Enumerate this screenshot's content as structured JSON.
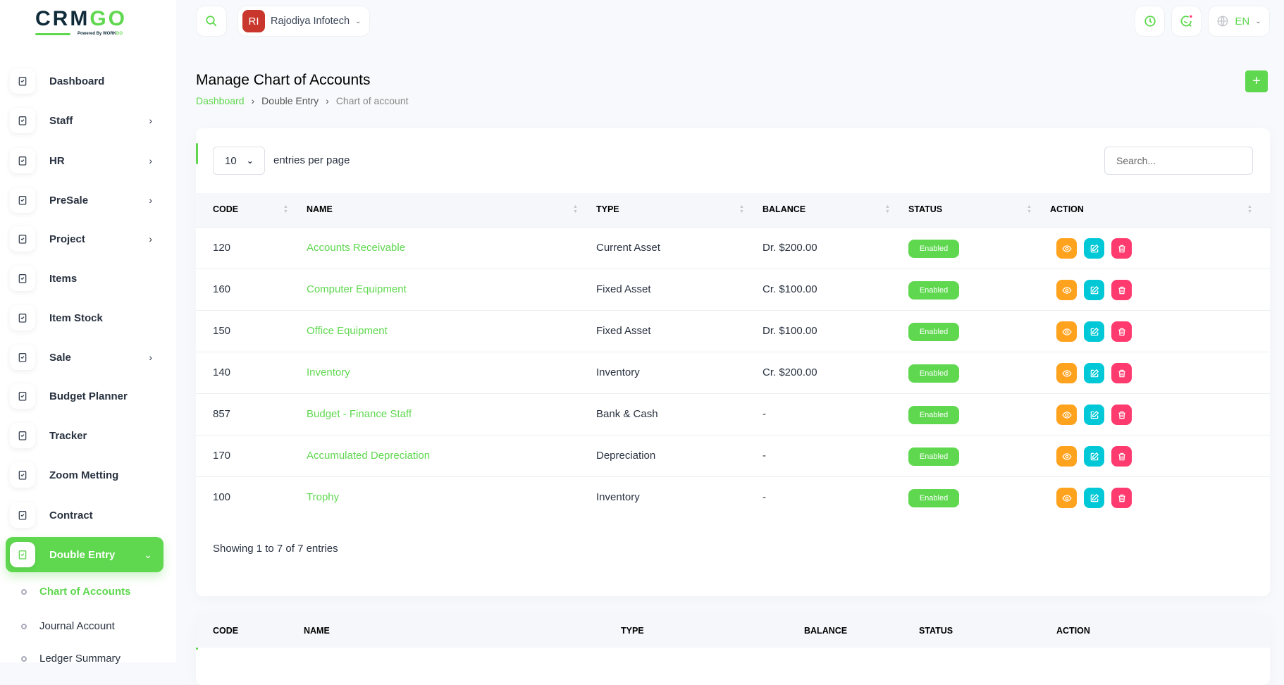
{
  "brand": {
    "logo_text": "CRMGO",
    "powered_by": "Powered By WORKDO"
  },
  "sidebar": {
    "items": [
      {
        "label": "Dashboard",
        "icon": "home-icon",
        "chevron": false
      },
      {
        "label": "Staff",
        "icon": "users-icon",
        "chevron": true
      },
      {
        "label": "HR",
        "icon": "plug-icon",
        "chevron": true
      },
      {
        "label": "PreSale",
        "icon": "grid-icon",
        "chevron": true
      },
      {
        "label": "Project",
        "icon": "grid-icon",
        "chevron": true
      },
      {
        "label": "Items",
        "icon": "clipboard-icon",
        "chevron": false
      },
      {
        "label": "Item Stock",
        "icon": "clipboard-icon",
        "chevron": false
      },
      {
        "label": "Sale",
        "icon": "sale-icon",
        "chevron": true
      },
      {
        "label": "Budget Planner",
        "icon": "clipboard-icon",
        "chevron": false
      },
      {
        "label": "Tracker",
        "icon": "alarm-icon",
        "chevron": false
      },
      {
        "label": "Zoom Metting",
        "icon": "video-icon",
        "chevron": false
      },
      {
        "label": "Contract",
        "icon": "contract-icon",
        "chevron": false
      },
      {
        "label": "Double Entry",
        "icon": "ledger-icon",
        "chevron": true,
        "active": true
      }
    ],
    "subitems": [
      {
        "label": "Chart of Accounts",
        "active": true
      },
      {
        "label": "Journal Account"
      },
      {
        "label": "Ledger Summary"
      }
    ]
  },
  "topbar": {
    "company_initials": "RI",
    "company_name": "Rajodiya Infotech",
    "language": "EN",
    "company_color": "#c9372c"
  },
  "page": {
    "title": "Manage Chart of Accounts",
    "breadcrumb": [
      "Dashboard",
      "Double Entry",
      "Chart of account"
    ],
    "add_label": "+"
  },
  "table": {
    "per_page": "10",
    "per_page_label": "entries per page",
    "search_placeholder": "Search...",
    "columns": [
      "CODE",
      "NAME",
      "TYPE",
      "BALANCE",
      "STATUS",
      "ACTION"
    ],
    "rows": [
      {
        "code": "120",
        "name": "Accounts Receivable",
        "type": "Current Asset",
        "balance": "Dr. $200.00",
        "status": "Enabled"
      },
      {
        "code": "160",
        "name": "Computer Equipment",
        "type": "Fixed Asset",
        "balance": "Cr. $100.00",
        "status": "Enabled"
      },
      {
        "code": "150",
        "name": "Office Equipment",
        "type": "Fixed Asset",
        "balance": "Dr. $100.00",
        "status": "Enabled"
      },
      {
        "code": "140",
        "name": "Inventory",
        "type": "Inventory",
        "balance": "Cr. $200.00",
        "status": "Enabled"
      },
      {
        "code": "857",
        "name": "Budget - Finance Staff",
        "type": "Bank & Cash",
        "balance": "-",
        "status": "Enabled"
      },
      {
        "code": "170",
        "name": "Accumulated Depreciation",
        "type": "Depreciation",
        "balance": "-",
        "status": "Enabled"
      },
      {
        "code": "100",
        "name": "Trophy",
        "type": "Inventory",
        "balance": "-",
        "status": "Enabled"
      }
    ],
    "showing": "Showing 1 to 7 of 7 entries"
  },
  "colors": {
    "accent": "#5fd84f",
    "view": "#ffa21d",
    "edit": "#00c8d7",
    "delete": "#ff3a6e"
  }
}
